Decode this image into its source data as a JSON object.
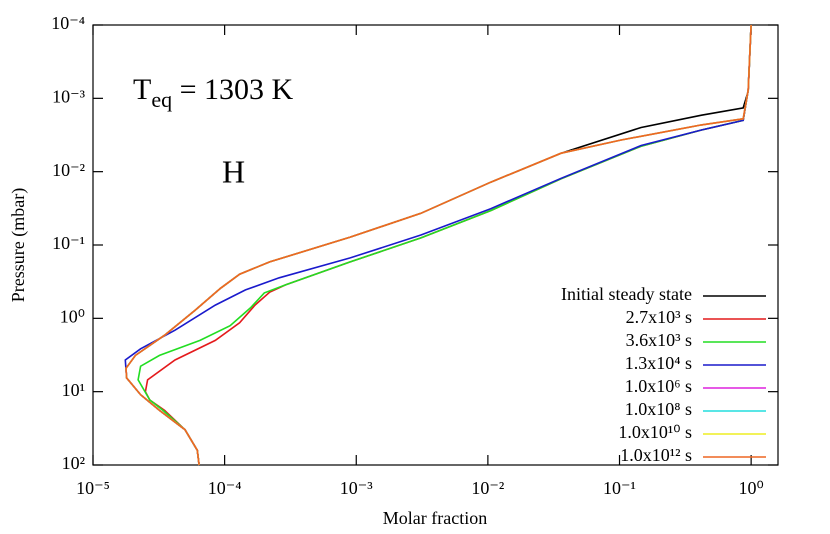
{
  "chart_data": {
    "type": "line",
    "xlabel": "Molar fraction",
    "ylabel": "Pressure (mbar)",
    "annotations": [
      {
        "base": "T",
        "subscript": "eq",
        "text": " = 1303 K"
      },
      {
        "text": "H"
      }
    ],
    "xscale": "log",
    "yscale": "log",
    "xlim": [
      1e-05,
      1.6
    ],
    "ylim": [
      100,
      0.0001
    ],
    "xticks": [
      {
        "value": 1e-05,
        "label": "10⁻⁵"
      },
      {
        "value": 0.0001,
        "label": "10⁻⁴"
      },
      {
        "value": 0.001,
        "label": "10⁻³"
      },
      {
        "value": 0.01,
        "label": "10⁻²"
      },
      {
        "value": 0.1,
        "label": "10⁻¹"
      },
      {
        "value": 1,
        "label": "10⁰"
      }
    ],
    "yticks": [
      {
        "value": 100,
        "label": "10²"
      },
      {
        "value": 10,
        "label": "10¹"
      },
      {
        "value": 1,
        "label": "10⁰"
      },
      {
        "value": 0.1,
        "label": "10⁻¹"
      },
      {
        "value": 0.01,
        "label": "10⁻²"
      },
      {
        "value": 0.001,
        "label": "10⁻³"
      },
      {
        "value": 0.0001,
        "label": "10⁻⁴"
      }
    ],
    "legend": "lower right",
    "series": [
      {
        "name": "Initial steady state",
        "color": "#000000",
        "x": [
          6.4e-05,
          6.2e-05,
          5e-05,
          3.2e-05,
          2.3e-05,
          1.8e-05,
          1.78e-05,
          2.1e-05,
          3.5e-05,
          6e-05,
          9.3e-05,
          0.00013,
          0.00022,
          0.0009,
          0.0031,
          0.0105,
          0.036,
          0.146,
          0.42,
          0.87,
          0.95,
          1.0
        ],
        "values": [
          100,
          63,
          33,
          18,
          11,
          6.5,
          4.8,
          3.2,
          1.7,
          0.77,
          0.39,
          0.25,
          0.17,
          0.078,
          0.037,
          0.0139,
          0.0056,
          0.0025,
          0.0017,
          0.00135,
          0.0008,
          0.0001
        ]
      },
      {
        "name": "2.7x10³ s",
        "color": "#e41a1c",
        "x": [
          6.4e-05,
          6.2e-05,
          5e-05,
          3.5e-05,
          2.7e-05,
          2.5e-05,
          2.6e-05,
          4.2e-05,
          8.5e-05,
          0.00013,
          0.00017,
          0.00022,
          0.00029,
          0.0009,
          0.0031,
          0.0105,
          0.036,
          0.146,
          0.42,
          0.87,
          0.95,
          1.0
        ],
        "values": [
          100,
          63,
          33,
          18,
          13,
          10,
          6.9,
          3.7,
          2.0,
          1.15,
          0.66,
          0.44,
          0.35,
          0.17,
          0.08,
          0.034,
          0.0125,
          0.0045,
          0.0027,
          0.002,
          0.00077,
          0.0001
        ]
      },
      {
        "name": "3.6x10³ s",
        "color": "#22dd22",
        "x": [
          6.4e-05,
          6.2e-05,
          5e-05,
          3.4e-05,
          2.7e-05,
          2.2e-05,
          2.3e-05,
          3.2e-05,
          6.5e-05,
          0.00011,
          0.000157,
          0.0002,
          0.00029,
          0.0009,
          0.0031,
          0.0105,
          0.036,
          0.146,
          0.42,
          0.87,
          0.95,
          1.0
        ],
        "values": [
          100,
          63,
          33,
          18,
          13,
          6.9,
          4.5,
          3.2,
          2.0,
          1.26,
          0.72,
          0.45,
          0.35,
          0.17,
          0.08,
          0.034,
          0.0125,
          0.0045,
          0.0027,
          0.002,
          0.00077,
          0.0001
        ]
      },
      {
        "name": "1.3x10⁴ s",
        "color": "#1a1acc",
        "x": [
          6.4e-05,
          6.2e-05,
          5e-05,
          3.2e-05,
          2.3e-05,
          1.8e-05,
          1.76e-05,
          2.3e-05,
          4.2e-05,
          8.5e-05,
          0.000144,
          0.00026,
          0.0009,
          0.0031,
          0.0105,
          0.036,
          0.146,
          0.42,
          0.87,
          0.95,
          1.0
        ],
        "values": [
          100,
          63,
          33,
          18,
          11,
          6.5,
          3.7,
          2.6,
          1.45,
          0.66,
          0.41,
          0.28,
          0.15,
          0.073,
          0.032,
          0.0123,
          0.0044,
          0.0027,
          0.002,
          0.00077,
          0.0001
        ]
      },
      {
        "name": "1.0x10⁶ s",
        "color": "#dd22dd",
        "x": [
          6.4e-05,
          6.2e-05,
          5e-05,
          3.2e-05,
          2.3e-05,
          1.8e-05,
          1.78e-05,
          2.1e-05,
          3.5e-05,
          6e-05,
          9.3e-05,
          0.00013,
          0.00022,
          0.0009,
          0.0031,
          0.0105,
          0.036,
          0.103,
          0.42,
          0.87,
          0.95,
          1.0
        ],
        "values": [
          100,
          63,
          33,
          18,
          11,
          6.5,
          4.8,
          3.2,
          1.7,
          0.77,
          0.39,
          0.25,
          0.17,
          0.078,
          0.037,
          0.0139,
          0.0056,
          0.0037,
          0.0023,
          0.0019,
          0.00077,
          0.0001
        ]
      },
      {
        "name": "1.0x10⁸ s",
        "color": "#22dddd",
        "x": [
          6.4e-05,
          6.2e-05,
          5e-05,
          3.2e-05,
          2.3e-05,
          1.8e-05,
          1.78e-05,
          2.1e-05,
          3.5e-05,
          6e-05,
          9.3e-05,
          0.00013,
          0.00022,
          0.0009,
          0.0031,
          0.0105,
          0.036,
          0.103,
          0.42,
          0.87,
          0.95,
          1.0
        ],
        "values": [
          100,
          63,
          33,
          18,
          11,
          6.5,
          4.8,
          3.2,
          1.7,
          0.77,
          0.39,
          0.25,
          0.17,
          0.078,
          0.037,
          0.0139,
          0.0056,
          0.0037,
          0.0023,
          0.0019,
          0.00077,
          0.0001
        ]
      },
      {
        "name": "1.0x10¹⁰ s",
        "color": "#eeee22",
        "x": [
          6.4e-05,
          6.2e-05,
          5e-05,
          3.2e-05,
          2.3e-05,
          1.8e-05,
          1.78e-05,
          2.1e-05,
          3.5e-05,
          6e-05,
          9.3e-05,
          0.00013,
          0.00022,
          0.0009,
          0.0031,
          0.0105,
          0.036,
          0.103,
          0.42,
          0.87,
          0.95,
          1.0
        ],
        "values": [
          100,
          63,
          33,
          18,
          11,
          6.5,
          4.8,
          3.2,
          1.7,
          0.77,
          0.39,
          0.25,
          0.17,
          0.078,
          0.037,
          0.0139,
          0.0056,
          0.0037,
          0.0023,
          0.0019,
          0.00077,
          0.0001
        ]
      },
      {
        "name": "1.0x10¹² s",
        "color": "#ee6622",
        "x": [
          6.4e-05,
          6.2e-05,
          5e-05,
          3.2e-05,
          2.3e-05,
          1.8e-05,
          1.78e-05,
          2.1e-05,
          3.5e-05,
          6e-05,
          9.3e-05,
          0.00013,
          0.00022,
          0.0009,
          0.0031,
          0.0105,
          0.036,
          0.103,
          0.42,
          0.87,
          0.95,
          1.0
        ],
        "values": [
          100,
          63,
          33,
          18,
          11,
          6.5,
          4.8,
          3.2,
          1.7,
          0.77,
          0.39,
          0.25,
          0.17,
          0.078,
          0.037,
          0.0139,
          0.0056,
          0.0037,
          0.0023,
          0.0019,
          0.00077,
          0.0001
        ]
      }
    ]
  }
}
